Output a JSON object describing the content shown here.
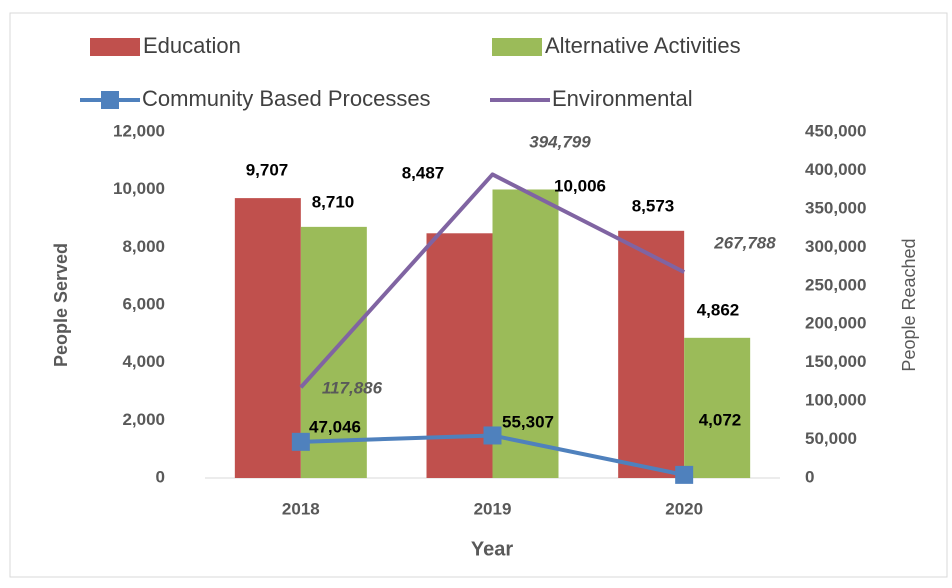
{
  "chart_data": {
    "type": "bar_line",
    "categories": [
      "2018",
      "2019",
      "2020"
    ],
    "x_label": "Year",
    "y_label": "People Served",
    "y2_label": "People Reached",
    "ylim": [
      0,
      12000
    ],
    "yticks": [
      0,
      {
        "value": 2000,
        "label": "2,000"
      },
      {
        "value": 4000,
        "label": "4,000"
      },
      {
        "value": 6000,
        "label": "6,000"
      },
      {
        "value": 8000,
        "label": "8,000"
      },
      {
        "value": 10000,
        "label": "10,000"
      },
      {
        "value": 12000,
        "label": "12,000"
      }
    ],
    "y2lim": [
      0,
      450000
    ],
    "y2ticks": [
      0,
      {
        "value": 50000,
        "label": "50,000"
      },
      {
        "value": 100000,
        "label": "100,000"
      },
      {
        "value": 150000,
        "label": "150,000"
      },
      {
        "value": 200000,
        "label": "200,000"
      },
      {
        "value": 250000,
        "label": "250,000"
      },
      {
        "value": 300000,
        "label": "300,000"
      },
      {
        "value": 350000,
        "label": "350,000"
      },
      {
        "value": 400000,
        "label": "400,000"
      },
      {
        "value": 450000,
        "label": "450,000"
      }
    ],
    "series": [
      {
        "name": "Education",
        "kind": "bar",
        "color": "#c0504d",
        "values": [
          9707,
          8487,
          8573
        ],
        "value_labels": [
          "9,707",
          "8,487",
          "8,573"
        ]
      },
      {
        "name": "Alternative Activities",
        "kind": "bar",
        "color": "#9bbb59",
        "values": [
          8710,
          10006,
          4862
        ],
        "value_labels": [
          "8,710",
          "10,006",
          "4,862"
        ]
      },
      {
        "name": "Community Based Processes",
        "kind": "line",
        "axis": "y2",
        "marker": "square",
        "color": "#4f81bd",
        "values": [
          47046,
          55307,
          4072
        ],
        "value_labels": [
          "47,046",
          "55,307",
          "4,072"
        ]
      },
      {
        "name": "Environmental",
        "kind": "line",
        "axis": "y2",
        "color": "#8064a2",
        "values": [
          117886,
          394799,
          267788
        ],
        "value_labels": [
          "117,886",
          "394,799",
          "267,788"
        ]
      }
    ]
  }
}
